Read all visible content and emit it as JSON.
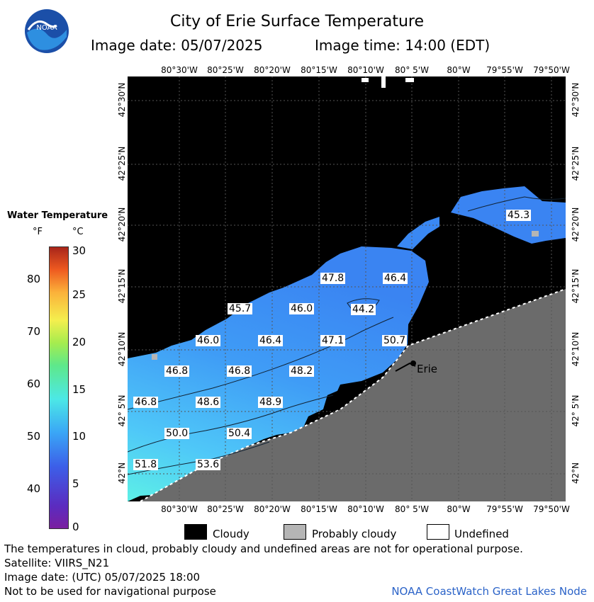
{
  "header": {
    "title": "City of Erie Surface Temperature",
    "image_date_label": "Image date: 05/07/2025",
    "image_time_label": "Image time: 14:00 (EDT)",
    "logo_text": "NOAA"
  },
  "map": {
    "lon_labels": [
      "80°30'W",
      "80°25'W",
      "80°20'W",
      "80°15'W",
      "80°10'W",
      "80° 5'W",
      "80°W",
      "79°55'W",
      "79°50'W"
    ],
    "lat_labels": [
      "42°30'N",
      "42°25'N",
      "42°20'N",
      "42°15'N",
      "42°10'N",
      "42° 5'N",
      "42°N"
    ],
    "city_label": "Erie",
    "temperature_labels": [
      {
        "value": "45.3"
      },
      {
        "value": "47.8"
      },
      {
        "value": "46.4"
      },
      {
        "value": "45.7"
      },
      {
        "value": "46.0"
      },
      {
        "value": "44.2"
      },
      {
        "value": "46.0"
      },
      {
        "value": "46.4"
      },
      {
        "value": "47.1"
      },
      {
        "value": "50.7"
      },
      {
        "value": "46.8"
      },
      {
        "value": "46.8"
      },
      {
        "value": "48.2"
      },
      {
        "value": "46.8"
      },
      {
        "value": "48.6"
      },
      {
        "value": "48.9"
      },
      {
        "value": "50.0"
      },
      {
        "value": "50.4"
      },
      {
        "value": "51.8"
      },
      {
        "value": "53.6"
      }
    ],
    "colors": {
      "cloud": "#000000",
      "land": "#6b6b6b",
      "water_cold": "#3d7ff5",
      "water_warm": "#5be8f0"
    }
  },
  "scale": {
    "title": "Water Temperature",
    "unit_f": "°F",
    "unit_c": "°C",
    "f_ticks": [
      "80",
      "70",
      "60",
      "50",
      "40"
    ],
    "c_ticks": [
      "30",
      "25",
      "20",
      "15",
      "10",
      "5",
      "0"
    ]
  },
  "legend": {
    "cloudy": "Cloudy",
    "probably_cloudy": "Probably cloudy",
    "undefined": "Undefined"
  },
  "footer": {
    "disclaimer": "The temperatures in cloud, probably cloudy and undefined areas are not for operational purpose.",
    "satellite": "Satellite: VIIRS_N21",
    "image_date_utc": "Image date: (UTC) 05/07/2025  18:00",
    "nav_warning": "Not to be used for navigational purpose",
    "credit": "NOAA CoastWatch Great Lakes Node"
  }
}
